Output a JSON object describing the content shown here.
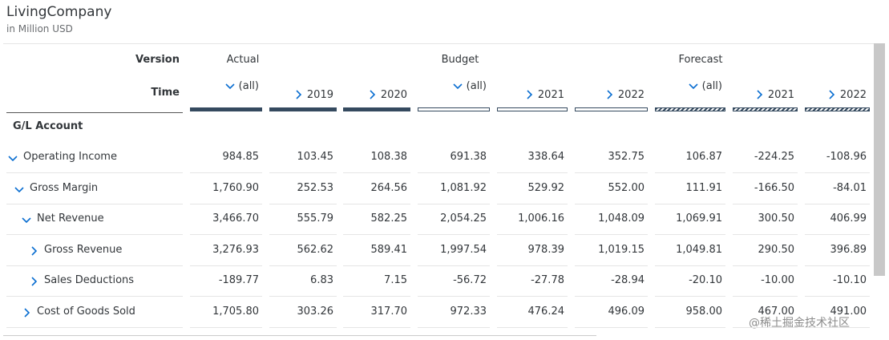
{
  "header": {
    "title": "LivingCompany",
    "subtitle": "in Million USD"
  },
  "table": {
    "version_label": "Version",
    "time_label": "Time",
    "account_label": "G/L Account",
    "versions": [
      "Actual",
      "Budget",
      "Forecast"
    ],
    "columns": [
      "(all)",
      "2019",
      "2020",
      "(all)",
      "2021",
      "2022",
      "(all)",
      "2021",
      "2022"
    ],
    "rows": [
      [
        "Operating Income",
        "984.85",
        "103.45",
        "108.38",
        "691.38",
        "338.64",
        "352.75",
        "106.87",
        "-224.25",
        "-108.96"
      ],
      [
        "Gross Margin",
        "1,760.90",
        "252.53",
        "264.56",
        "1,081.92",
        "529.92",
        "552.00",
        "111.91",
        "-166.50",
        "-84.01"
      ],
      [
        "Net Revenue",
        "3,466.70",
        "555.79",
        "582.25",
        "2,054.25",
        "1,006.16",
        "1,048.09",
        "1,069.91",
        "300.50",
        "406.99"
      ],
      [
        "Gross Revenue",
        "3,276.93",
        "562.62",
        "589.41",
        "1,997.54",
        "978.39",
        "1,019.15",
        "1,049.81",
        "290.50",
        "396.89"
      ],
      [
        "Sales Deductions",
        "-189.77",
        "6.83",
        "7.15",
        "-56.72",
        "-27.78",
        "-28.94",
        "-20.10",
        "-10.00",
        "-10.10"
      ],
      [
        "Cost of Goods Sold",
        "1,705.80",
        "303.26",
        "317.70",
        "972.33",
        "476.24",
        "496.09",
        "958.00",
        "467.00",
        "491.00"
      ]
    ]
  },
  "watermark": "@稀土掘金技术社区"
}
